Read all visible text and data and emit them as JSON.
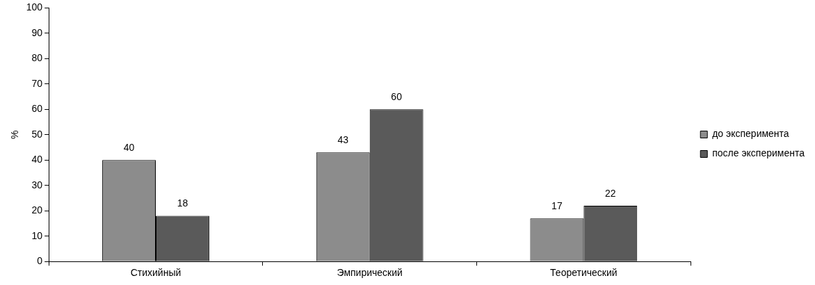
{
  "chart_data": {
    "type": "bar",
    "ylabel": "%",
    "categories": [
      "Стихийный",
      "Эмпирический",
      "Теоретический"
    ],
    "series": [
      {
        "name": "до эксперимента",
        "color": "#8c8c8c",
        "values": [
          40,
          43,
          17
        ]
      },
      {
        "name": "после эксперимента",
        "color": "#5a5a5a",
        "values": [
          18,
          60,
          22
        ]
      }
    ],
    "ylim": [
      0,
      100
    ],
    "yticks": [
      0,
      10,
      20,
      30,
      40,
      50,
      60,
      70,
      80,
      90,
      100
    ],
    "grid": false,
    "legend": "right",
    "data_labels": true
  }
}
